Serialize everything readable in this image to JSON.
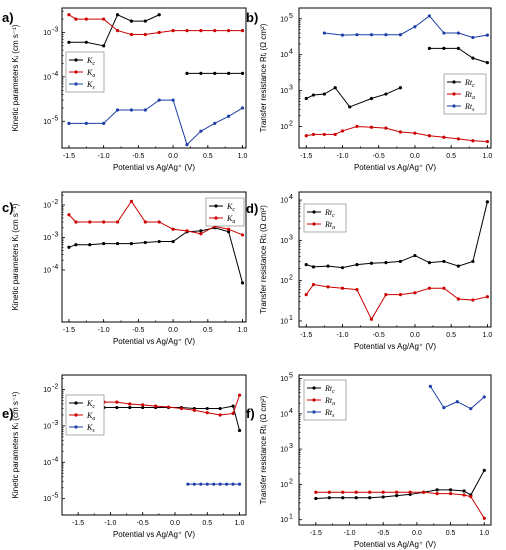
{
  "chart_data": [
    {
      "panel_label": "a)",
      "type": "line",
      "xlabel": "Potential vs Ag/Ag⁺ (V)",
      "ylabel": "Kinetic parameters Kᵢ (cm s⁻¹)",
      "xlim": [
        -1.6,
        1.05
      ],
      "ylim_log10": [
        -5.6,
        -2.45
      ],
      "y_scale": "log",
      "x_ticks": [
        "-1.5",
        "-1.0",
        "-0.5",
        "0.0",
        "0.5",
        "1.0"
      ],
      "y_ticks": [
        {
          "exp": -5,
          "label": "10"
        },
        {
          "exp": -4,
          "label": "10"
        },
        {
          "exp": -3,
          "label": "10"
        }
      ],
      "y_tick_exponents": [
        "-5",
        "-4",
        "-3"
      ],
      "legend_position": "left-middle",
      "series": [
        {
          "name": "K",
          "sub": "c",
          "color": "#000000",
          "segments": [
            {
              "x": [
                -1.5,
                -1.25,
                -1.0,
                -0.8,
                -0.6,
                -0.4,
                -0.2
              ],
              "y": [
                0.0006,
                0.0006,
                0.0005,
                0.0025,
                0.0018,
                0.0018,
                0.0025
              ]
            },
            {
              "x": [
                0.2,
                0.4,
                0.6,
                0.8,
                1.0
              ],
              "y": [
                0.00012,
                0.00012,
                0.00012,
                0.00012,
                0.00012
              ]
            }
          ]
        },
        {
          "name": "K",
          "sub": "a",
          "color": "#cc0000",
          "segments": [
            {
              "x": [
                -1.5,
                -1.4,
                -1.25,
                -1.0,
                -0.8,
                -0.6,
                -0.4,
                -0.2,
                0.0,
                0.2,
                0.4,
                0.6,
                0.8,
                1.0
              ],
              "y": [
                0.0025,
                0.002,
                0.002,
                0.002,
                0.0011,
                0.0009,
                0.0009,
                0.001,
                0.0011,
                0.0011,
                0.0011,
                0.0011,
                0.0011,
                0.0011
              ]
            }
          ]
        },
        {
          "name": "K",
          "sub": "s",
          "color": "#1f3fa8",
          "segments": [
            {
              "x": [
                -1.5,
                -1.25,
                -1.0,
                -0.8,
                -0.6,
                -0.4,
                -0.2,
                0.0,
                0.2,
                0.4,
                0.6,
                0.8,
                1.0
              ],
              "y": [
                9e-06,
                9e-06,
                9e-06,
                1.8e-05,
                1.8e-05,
                1.8e-05,
                3e-05,
                3e-05,
                3e-06,
                6e-06,
                9e-06,
                1.3e-05,
                2e-05
              ]
            }
          ]
        }
      ]
    },
    {
      "panel_label": "b)",
      "type": "line",
      "xlabel": "Potential vs Ag/Ag⁺ (V)",
      "ylabel": "Transfer resistance Rtᵢ (Ω cm²)",
      "xlim": [
        -1.6,
        1.05
      ],
      "ylim_log10": [
        1.4,
        5.3
      ],
      "y_scale": "log",
      "x_ticks": [
        "-1.5",
        "-1.0",
        "-0.5",
        "0.0",
        "0.5",
        "1.0"
      ],
      "y_ticks": [
        {
          "exp": 2,
          "label": "10"
        },
        {
          "exp": 3,
          "label": "10"
        },
        {
          "exp": 4,
          "label": "10"
        },
        {
          "exp": 5,
          "label": "10"
        }
      ],
      "y_tick_exponents": [
        "2",
        "3",
        "4",
        "5"
      ],
      "legend_position": "right-middle",
      "series": [
        {
          "name": "Rt",
          "sub": "c",
          "color": "#000000",
          "segments": [
            {
              "x": [
                -1.5,
                -1.4,
                -1.25,
                -1.1,
                -0.9,
                -0.6,
                -0.4,
                -0.2
              ],
              "y": [
                600,
                750,
                800,
                1200,
                350,
                600,
                800,
                1200
              ]
            },
            {
              "x": [
                0.2,
                0.4,
                0.6,
                0.8,
                1.0
              ],
              "y": [
                15000,
                15000,
                15000,
                8000,
                6000
              ]
            }
          ]
        },
        {
          "name": "Rt",
          "sub": "a",
          "color": "#cc0000",
          "segments": [
            {
              "x": [
                -1.5,
                -1.4,
                -1.25,
                -1.1,
                -1.0,
                -0.8,
                -0.6,
                -0.4,
                -0.2,
                0.0,
                0.2,
                0.4,
                0.6,
                0.8,
                1.0
              ],
              "y": [
                55,
                60,
                60,
                60,
                75,
                100,
                95,
                90,
                70,
                65,
                55,
                50,
                45,
                40,
                38
              ]
            }
          ]
        },
        {
          "name": "Rt",
          "sub": "s",
          "color": "#1f3fa8",
          "segments": [
            {
              "x": [
                -1.25,
                -1.0,
                -0.8,
                -0.6,
                -0.4,
                -0.2,
                0.0,
                0.2,
                0.4,
                0.6,
                0.8,
                1.0
              ],
              "y": [
                40000,
                35000,
                36000,
                36000,
                36000,
                36000,
                60000,
                120000,
                40000,
                40000,
                30000,
                35000
              ]
            }
          ]
        }
      ]
    },
    {
      "panel_label": "c)",
      "type": "line",
      "xlabel": "Potential vs Ag/Ag⁺ (V)",
      "ylabel": "Kinetic parameters Kᵢ (cm s⁻¹)",
      "xlim": [
        -1.6,
        1.05
      ],
      "ylim_log10": [
        -5.6,
        -1.6
      ],
      "y_scale": "log",
      "x_ticks": [
        "-1.5",
        "-1.0",
        "-0.5",
        "0.0",
        "0.5",
        "1.0"
      ],
      "y_ticks": [
        {
          "exp": -4,
          "label": "10"
        },
        {
          "exp": -3,
          "label": "10"
        },
        {
          "exp": -2,
          "label": "10"
        }
      ],
      "y_tick_exponents": [
        "-4",
        "-3",
        "-2"
      ],
      "legend_position": "top-right",
      "series": [
        {
          "name": "K",
          "sub": "c",
          "color": "#000000",
          "segments": [
            {
              "x": [
                -1.5,
                -1.4,
                -1.2,
                -1.0,
                -0.8,
                -0.6,
                -0.4,
                -0.2,
                0.0,
                0.2,
                0.4,
                0.6,
                0.8,
                1.0
              ],
              "y": [
                0.0005,
                0.0006,
                0.0006,
                0.00065,
                0.00065,
                0.00065,
                0.0007,
                0.00075,
                0.00075,
                0.0015,
                0.0016,
                0.002,
                0.0015,
                4e-05
              ]
            }
          ]
        },
        {
          "name": "K",
          "sub": "a",
          "color": "#cc0000",
          "segments": [
            {
              "x": [
                -1.5,
                -1.4,
                -1.2,
                -1.0,
                -0.8,
                -0.6,
                -0.4,
                -0.2,
                0.0,
                0.2,
                0.4,
                0.6,
                0.8,
                1.0
              ],
              "y": [
                0.005,
                0.003,
                0.003,
                0.003,
                0.003,
                0.013,
                0.003,
                0.003,
                0.0018,
                0.0016,
                0.0013,
                0.0022,
                0.0018,
                0.0012
              ]
            }
          ]
        }
      ]
    },
    {
      "panel_label": "d)",
      "type": "line",
      "xlabel": "Potential vs Ag/Ag⁺ (V)",
      "ylabel": "Transfer resistance Rtᵢ (Ω cm²)",
      "xlim": [
        -1.6,
        1.05
      ],
      "ylim_log10": [
        0.85,
        4.2
      ],
      "y_scale": "log",
      "x_ticks": [
        "-1.5",
        "-1.0",
        "-0.5",
        "0.0",
        "0.5",
        "1.0"
      ],
      "y_ticks": [
        {
          "exp": 1,
          "label": "10"
        },
        {
          "exp": 2,
          "label": "10"
        },
        {
          "exp": 3,
          "label": "10"
        },
        {
          "exp": 4,
          "label": "10"
        }
      ],
      "y_tick_exponents": [
        "1",
        "2",
        "3",
        "4"
      ],
      "legend_position": "top-left",
      "series": [
        {
          "name": "Rt",
          "sub": "c",
          "color": "#000000",
          "segments": [
            {
              "x": [
                -1.5,
                -1.4,
                -1.2,
                -1.0,
                -0.8,
                -0.6,
                -0.4,
                -0.2,
                0.0,
                0.2,
                0.4,
                0.6,
                0.8,
                1.0
              ],
              "y": [
                250,
                220,
                230,
                210,
                250,
                270,
                280,
                300,
                420,
                280,
                300,
                230,
                300,
                9000
              ]
            }
          ]
        },
        {
          "name": "Rt",
          "sub": "a",
          "color": "#cc0000",
          "segments": [
            {
              "x": [
                -1.5,
                -1.4,
                -1.2,
                -1.0,
                -0.8,
                -0.6,
                -0.4,
                -0.2,
                0.0,
                0.2,
                0.4,
                0.6,
                0.8,
                1.0
              ],
              "y": [
                45,
                80,
                70,
                65,
                60,
                11,
                45,
                45,
                50,
                65,
                65,
                35,
                33,
                40
              ]
            }
          ]
        }
      ]
    },
    {
      "panel_label": "e)",
      "type": "line",
      "xlabel": "Potential vs Ag/Ag⁺ (V)",
      "ylabel": "Kinetic parameters Kᵢ (cm s⁻¹)",
      "xlim": [
        -1.75,
        1.1
      ],
      "ylim_log10": [
        -5.45,
        -1.6
      ],
      "y_scale": "log",
      "x_ticks": [
        "-1.5",
        "-1.0",
        "-0.5",
        "0.0",
        "0.5",
        "1.0"
      ],
      "y_ticks": [
        {
          "exp": -5,
          "label": "10"
        },
        {
          "exp": -4,
          "label": "10"
        },
        {
          "exp": -3,
          "label": "10"
        },
        {
          "exp": -2,
          "label": "10"
        }
      ],
      "y_tick_exponents": [
        "-5",
        "-4",
        "-3",
        "-2"
      ],
      "legend_position": "left-middle",
      "series": [
        {
          "name": "K",
          "sub": "c",
          "color": "#000000",
          "segments": [
            {
              "x": [
                -1.5,
                -1.3,
                -1.1,
                -0.9,
                -0.7,
                -0.5,
                -0.3,
                -0.1,
                0.1,
                0.3,
                0.5,
                0.7,
                0.9,
                1.0
              ],
              "y": [
                0.0032,
                0.0032,
                0.0032,
                0.0032,
                0.0032,
                0.0032,
                0.0032,
                0.0032,
                0.0032,
                0.003,
                0.003,
                0.003,
                0.0035,
                0.00075
              ]
            }
          ]
        },
        {
          "name": "K",
          "sub": "a",
          "color": "#cc0000",
          "segments": [
            {
              "x": [
                -1.5,
                -1.3,
                -1.1,
                -0.9,
                -0.7,
                -0.5,
                -0.3,
                -0.1,
                0.1,
                0.3,
                0.5,
                0.7,
                0.9,
                1.0
              ],
              "y": [
                0.0045,
                0.0045,
                0.0045,
                0.0045,
                0.004,
                0.0038,
                0.0035,
                0.0033,
                0.003,
                0.0027,
                0.0023,
                0.002,
                0.0022,
                0.007
              ]
            }
          ]
        },
        {
          "name": "K",
          "sub": "s",
          "color": "#1f3fa8",
          "segments": [
            {
              "x": [
                0.2,
                0.3,
                0.4,
                0.5,
                0.6,
                0.7,
                0.8,
                0.9,
                1.0
              ],
              "y": [
                2.5e-05,
                2.5e-05,
                2.5e-05,
                2.5e-05,
                2.5e-05,
                2.5e-05,
                2.5e-05,
                2.5e-05,
                2.5e-05
              ]
            }
          ]
        }
      ]
    },
    {
      "panel_label": "f)",
      "type": "line",
      "xlabel": "Potential vs Ag/Ag⁺ (V)",
      "ylabel": "Transfer resistance Rtᵢ (Ω cm²)",
      "xlim": [
        -1.75,
        1.1
      ],
      "ylim_log10": [
        0.85,
        5.1
      ],
      "y_scale": "log",
      "x_ticks": [
        "-1.5",
        "-1.0",
        "-0.5",
        "0.0",
        "0.5",
        "1.0"
      ],
      "y_ticks": [
        {
          "exp": 1,
          "label": "10"
        },
        {
          "exp": 2,
          "label": "10"
        },
        {
          "exp": 3,
          "label": "10"
        },
        {
          "exp": 4,
          "label": "10"
        },
        {
          "exp": 5,
          "label": "10"
        }
      ],
      "y_tick_exponents": [
        "1",
        "2",
        "3",
        "4",
        "5"
      ],
      "legend_position": "top-left",
      "series": [
        {
          "name": "Rt",
          "sub": "c",
          "color": "#000000",
          "segments": [
            {
              "x": [
                -1.5,
                -1.3,
                -1.1,
                -0.9,
                -0.7,
                -0.5,
                -0.3,
                -0.1,
                0.1,
                0.3,
                0.5,
                0.7,
                0.8,
                1.0
              ],
              "y": [
                40,
                42,
                42,
                42,
                42,
                44,
                48,
                52,
                60,
                70,
                70,
                65,
                50,
                250
              ]
            }
          ]
        },
        {
          "name": "Rt",
          "sub": "a",
          "color": "#cc0000",
          "segments": [
            {
              "x": [
                -1.5,
                -1.3,
                -1.1,
                -0.9,
                -0.7,
                -0.5,
                -0.3,
                -0.1,
                0.1,
                0.3,
                0.5,
                0.7,
                0.8,
                1.0
              ],
              "y": [
                60,
                60,
                60,
                60,
                60,
                60,
                60,
                60,
                60,
                55,
                55,
                50,
                45,
                11
              ]
            }
          ]
        },
        {
          "name": "Rt",
          "sub": "s",
          "color": "#1f3fa8",
          "segments": [
            {
              "x": [
                0.2,
                0.4,
                0.6,
                0.8,
                1.0
              ],
              "y": [
                60000,
                15000,
                22000,
                14000,
                30000
              ]
            }
          ]
        }
      ]
    }
  ]
}
